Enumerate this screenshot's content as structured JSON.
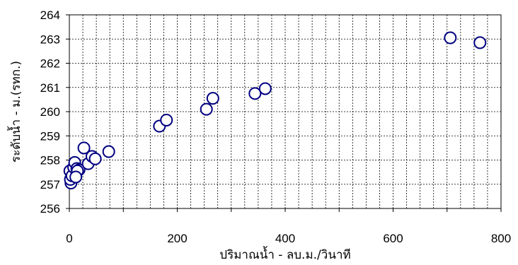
{
  "chart_data": {
    "type": "scatter",
    "title": "",
    "xlabel": "ปริมาณน้ำ - ลบ.ม./วินาที",
    "ylabel": "ระดับน้ำ - ม.(รทก.)",
    "xlim": [
      0,
      800
    ],
    "ylim": [
      256,
      264
    ],
    "xticks": [
      0,
      200,
      400,
      600,
      800
    ],
    "yticks": [
      256,
      257,
      258,
      259,
      260,
      261,
      262,
      263,
      264
    ],
    "grid": true,
    "legend": "none",
    "marker": {
      "shape": "circle",
      "stroke": "#000080",
      "fill": "#ffffff"
    },
    "series": [
      {
        "points": [
          [
            3,
            257.05
          ],
          [
            2,
            257.2
          ],
          [
            1,
            257.55
          ],
          [
            5,
            257.35
          ],
          [
            8,
            257.7
          ],
          [
            10,
            257.9
          ],
          [
            14,
            257.65
          ],
          [
            18,
            257.6
          ],
          [
            15,
            257.55
          ],
          [
            12,
            257.3
          ],
          [
            27,
            258.5
          ],
          [
            35,
            257.85
          ],
          [
            42,
            258.15
          ],
          [
            48,
            258.05
          ],
          [
            73,
            258.35
          ],
          [
            167,
            259.4
          ],
          [
            180,
            259.65
          ],
          [
            254,
            260.1
          ],
          [
            266,
            260.55
          ],
          [
            344,
            260.75
          ],
          [
            363,
            260.95
          ],
          [
            706,
            263.05
          ],
          [
            761,
            262.85
          ]
        ]
      }
    ]
  }
}
